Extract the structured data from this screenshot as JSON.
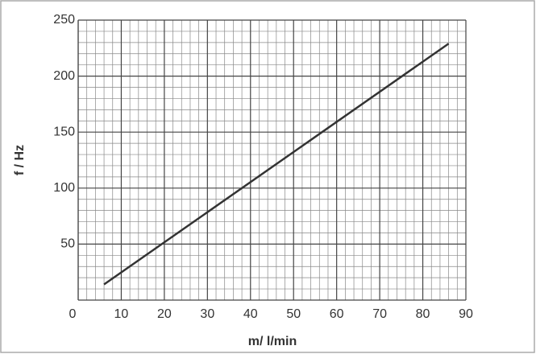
{
  "chart_data": {
    "type": "line",
    "x_label": "m/ l/min",
    "y_label": "f / Hz",
    "x": [
      6,
      86
    ],
    "series": [
      {
        "color": "#333333",
        "values": [
          14,
          229
        ]
      }
    ],
    "xlim": [
      0,
      90
    ],
    "xticks": [
      0,
      10,
      20,
      30,
      40,
      50,
      60,
      70,
      80,
      90
    ],
    "ylim": [
      0,
      250
    ],
    "yticks": [
      50,
      100,
      150,
      200,
      250
    ],
    "grid": true
  }
}
